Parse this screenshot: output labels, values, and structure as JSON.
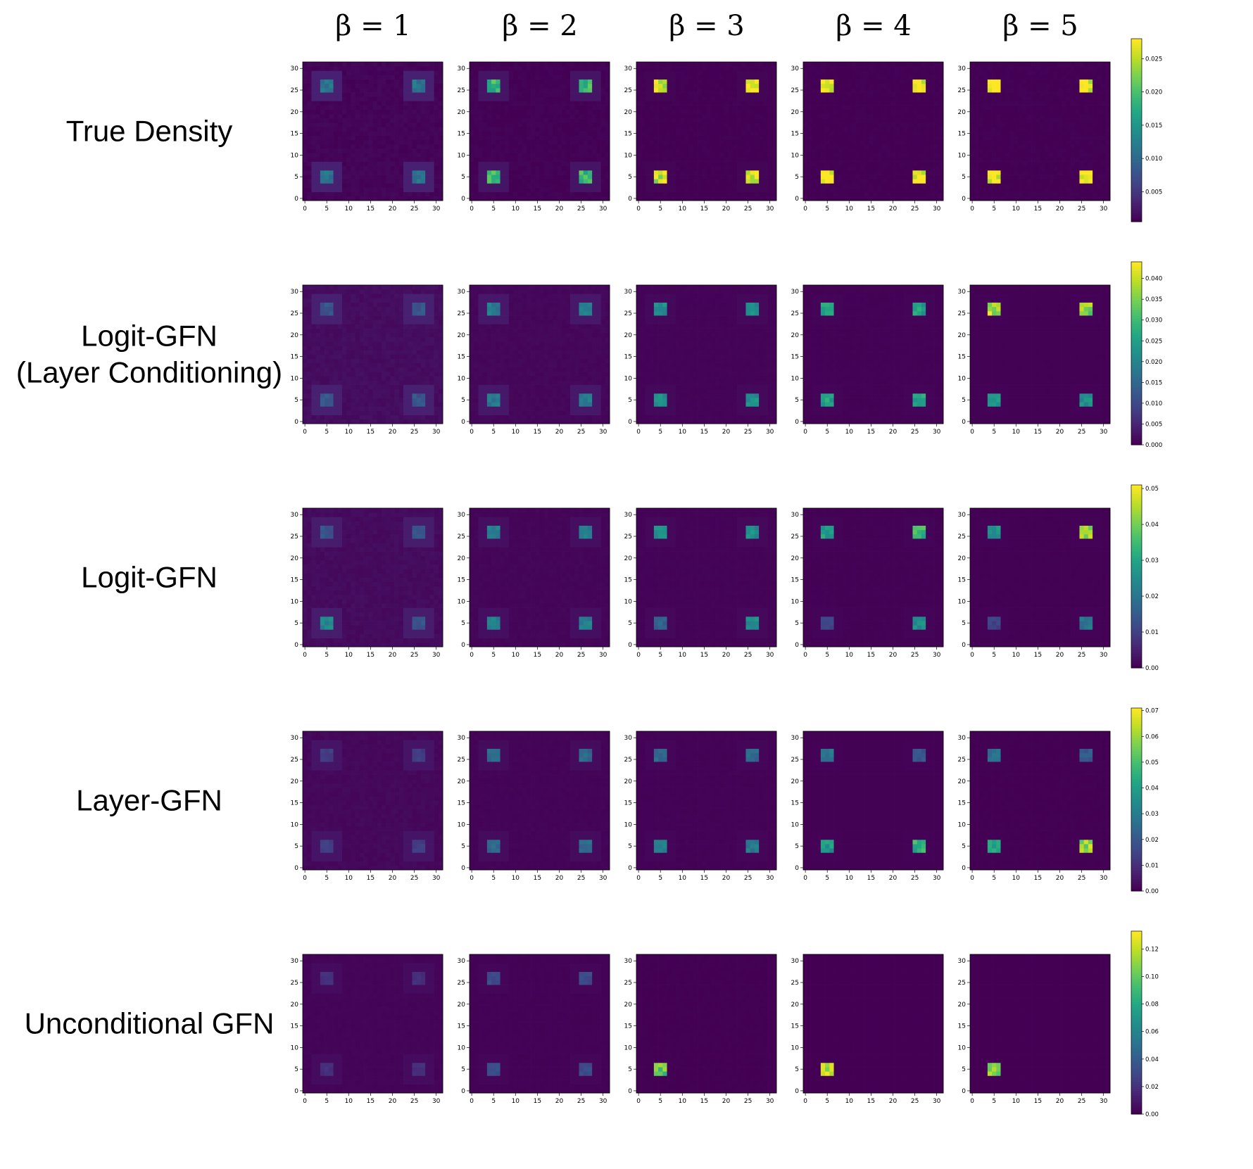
{
  "chart_data": {
    "type": "heatmap",
    "title": "",
    "columns": [
      "β = 1",
      "β = 2",
      "β = 3",
      "β = 4",
      "β = 5"
    ],
    "rows": [
      "True Density",
      "Logit-GFN (Layer Conditioning)",
      "Logit-GFN",
      "Layer-GFN",
      "Unconditional GFN"
    ],
    "grid_size": 32,
    "x_ticks": [
      "0",
      "5",
      "10",
      "15",
      "20",
      "25",
      "30"
    ],
    "y_ticks": [
      "0",
      "5",
      "10",
      "15",
      "20",
      "25",
      "30"
    ],
    "colormap": "viridis",
    "mode_centers": [
      [
        5,
        5
      ],
      [
        5,
        26
      ],
      [
        26,
        5
      ],
      [
        26,
        26
      ]
    ],
    "colorbars": [
      {
        "min": 0.0005,
        "max": 0.028,
        "ticks": [
          "0.005",
          "0.010",
          "0.015",
          "0.020",
          "0.025"
        ],
        "tick_values": [
          0.005,
          0.01,
          0.015,
          0.02,
          0.025
        ]
      },
      {
        "min": 0.0,
        "max": 0.044,
        "ticks": [
          "0.000",
          "0.005",
          "0.010",
          "0.015",
          "0.020",
          "0.025",
          "0.030",
          "0.035",
          "0.040"
        ],
        "tick_values": [
          0.0,
          0.005,
          0.01,
          0.015,
          0.02,
          0.025,
          0.03,
          0.035,
          0.04
        ]
      },
      {
        "min": 0.0,
        "max": 0.051,
        "ticks": [
          "0.00",
          "0.01",
          "0.02",
          "0.03",
          "0.04",
          "0.05"
        ],
        "tick_values": [
          0.0,
          0.01,
          0.02,
          0.03,
          0.04,
          0.05
        ]
      },
      {
        "min": 0.0,
        "max": 0.071,
        "ticks": [
          "0.00",
          "0.01",
          "0.02",
          "0.03",
          "0.04",
          "0.05",
          "0.06",
          "0.07"
        ],
        "tick_values": [
          0.0,
          0.01,
          0.02,
          0.03,
          0.04,
          0.05,
          0.06,
          0.07
        ]
      },
      {
        "min": 0.0,
        "max": 0.133,
        "ticks": [
          "0.00",
          "0.02",
          "0.04",
          "0.06",
          "0.08",
          "0.10",
          "0.12"
        ],
        "tick_values": [
          0.0,
          0.02,
          0.04,
          0.06,
          0.08,
          0.1,
          0.12
        ]
      }
    ],
    "panels": [
      [
        {
          "peak": 0.011,
          "peak_density": [
            0.011,
            0.011,
            0.011,
            0.011
          ],
          "halo": 0.003,
          "background": 0.0008
        },
        {
          "peak": 0.019,
          "peak_density": [
            0.019,
            0.019,
            0.019,
            0.019
          ],
          "halo": 0.002,
          "background": 0.0006
        },
        {
          "peak": 0.026,
          "peak_density": [
            0.026,
            0.026,
            0.026,
            0.026
          ],
          "halo": 0.0008,
          "background": 0.0005
        },
        {
          "peak": 0.028,
          "peak_density": [
            0.028,
            0.028,
            0.028,
            0.028
          ],
          "halo": 0.0005,
          "background": 0.0005
        },
        {
          "peak": 0.028,
          "peak_density": [
            0.028,
            0.028,
            0.028,
            0.028
          ],
          "halo": 0.0005,
          "background": 0.0005
        }
      ],
      [
        {
          "peak": 0.012,
          "peak_density": [
            0.012,
            0.012,
            0.012,
            0.012
          ],
          "halo": 0.004,
          "background": 0.0015
        },
        {
          "peak": 0.018,
          "peak_density": [
            0.018,
            0.018,
            0.018,
            0.018
          ],
          "halo": 0.003,
          "background": 0.0008
        },
        {
          "peak": 0.022,
          "peak_density": [
            0.022,
            0.022,
            0.022,
            0.022
          ],
          "halo": 0.001,
          "background": 0.0004
        },
        {
          "peak": 0.025,
          "peak_density": [
            0.025,
            0.025,
            0.025,
            0.025
          ],
          "halo": 0.0005,
          "background": 0.0002
        },
        {
          "peak": 0.028,
          "peak_density": [
            0.022,
            0.038,
            0.022,
            0.036
          ],
          "halo": 0.0003,
          "background": 0.0001
        }
      ],
      [
        {
          "peak": 0.016,
          "peak_density": [
            0.024,
            0.013,
            0.013,
            0.013
          ],
          "halo": 0.004,
          "background": 0.0015
        },
        {
          "peak": 0.022,
          "peak_density": [
            0.022,
            0.022,
            0.022,
            0.022
          ],
          "halo": 0.002,
          "background": 0.0007
        },
        {
          "peak": 0.024,
          "peak_density": [
            0.016,
            0.025,
            0.024,
            0.025
          ],
          "halo": 0.001,
          "background": 0.0004
        },
        {
          "peak": 0.028,
          "peak_density": [
            0.01,
            0.028,
            0.025,
            0.034
          ],
          "halo": 0.0005,
          "background": 0.0002
        },
        {
          "peak": 0.03,
          "peak_density": [
            0.01,
            0.026,
            0.02,
            0.045
          ],
          "halo": 0.0003,
          "background": 0.0001
        }
      ],
      [
        {
          "peak": 0.013,
          "peak_density": [
            0.013,
            0.013,
            0.013,
            0.013
          ],
          "halo": 0.004,
          "background": 0.0015
        },
        {
          "peak": 0.024,
          "peak_density": [
            0.024,
            0.024,
            0.024,
            0.024
          ],
          "halo": 0.002,
          "background": 0.0007
        },
        {
          "peak": 0.029,
          "peak_density": [
            0.029,
            0.024,
            0.029,
            0.024
          ],
          "halo": 0.001,
          "background": 0.0004
        },
        {
          "peak": 0.038,
          "peak_density": [
            0.038,
            0.028,
            0.046,
            0.02
          ],
          "halo": 0.0005,
          "background": 0.0002
        },
        {
          "peak": 0.045,
          "peak_density": [
            0.04,
            0.026,
            0.06,
            0.02
          ],
          "halo": 0.0003,
          "background": 0.0001
        }
      ],
      [
        {
          "peak": 0.018,
          "peak_density": [
            0.018,
            0.018,
            0.018,
            0.018
          ],
          "halo": 0.004,
          "background": 0.0015
        },
        {
          "peak": 0.03,
          "peak_density": [
            0.03,
            0.03,
            0.03,
            0.03
          ],
          "halo": 0.002,
          "background": 0.0007
        },
        {
          "peak": 0.1,
          "peak_density": [
            0.1,
            0.0,
            0.0,
            0.0
          ],
          "halo": 0.0,
          "background": 0.0002
        },
        {
          "peak": 0.115,
          "peak_density": [
            0.115,
            0.0,
            0.0,
            0.0
          ],
          "halo": 0.0,
          "background": 0.0001
        },
        {
          "peak": 0.11,
          "peak_density": [
            0.11,
            0.0,
            0.0,
            0.0
          ],
          "halo": 0.0,
          "background": 0.0001
        }
      ]
    ]
  }
}
